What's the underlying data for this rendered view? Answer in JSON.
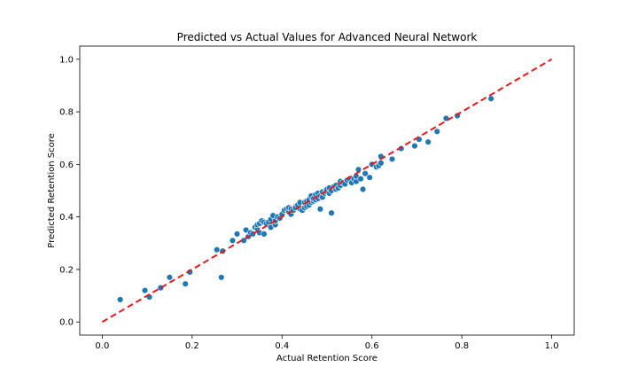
{
  "chart_data": {
    "type": "scatter",
    "title": "Predicted vs Actual Values for Advanced Neural Network",
    "xlabel": "Actual Retention Score",
    "ylabel": "Predicted Retention Score",
    "xlim": [
      -0.05,
      1.05
    ],
    "ylim": [
      -0.05,
      1.05
    ],
    "xticks": [
      "0.0",
      "0.2",
      "0.4",
      "0.6",
      "0.8",
      "1.0"
    ],
    "yticks": [
      "0.0",
      "0.2",
      "0.4",
      "0.6",
      "0.8",
      "1.0"
    ],
    "grid": false,
    "point_color": "#1f77b4",
    "reference_line": {
      "from": [
        0,
        0
      ],
      "to": [
        1,
        1
      ],
      "color": "#e41a1c",
      "style": "dashed"
    },
    "series": [
      {
        "x": [
          0.04,
          0.095,
          0.105,
          0.13,
          0.15,
          0.185,
          0.195,
          0.255,
          0.265,
          0.268,
          0.29,
          0.3,
          0.315,
          0.32,
          0.325,
          0.33,
          0.335,
          0.34,
          0.345,
          0.345,
          0.35,
          0.35,
          0.355,
          0.36,
          0.36,
          0.365,
          0.37,
          0.375,
          0.375,
          0.38,
          0.385,
          0.385,
          0.39,
          0.395,
          0.4,
          0.405,
          0.41,
          0.415,
          0.415,
          0.42,
          0.42,
          0.425,
          0.43,
          0.43,
          0.435,
          0.44,
          0.44,
          0.445,
          0.45,
          0.45,
          0.455,
          0.455,
          0.46,
          0.46,
          0.465,
          0.465,
          0.47,
          0.47,
          0.475,
          0.475,
          0.48,
          0.48,
          0.485,
          0.485,
          0.49,
          0.49,
          0.495,
          0.5,
          0.5,
          0.505,
          0.505,
          0.51,
          0.51,
          0.515,
          0.52,
          0.52,
          0.525,
          0.53,
          0.53,
          0.535,
          0.54,
          0.545,
          0.55,
          0.555,
          0.56,
          0.565,
          0.565,
          0.57,
          0.575,
          0.58,
          0.585,
          0.595,
          0.6,
          0.61,
          0.615,
          0.62,
          0.62,
          0.645,
          0.665,
          0.695,
          0.705,
          0.725,
          0.745,
          0.765,
          0.79,
          0.865
        ],
        "y": [
          0.085,
          0.12,
          0.095,
          0.13,
          0.17,
          0.145,
          0.19,
          0.275,
          0.17,
          0.27,
          0.31,
          0.335,
          0.31,
          0.35,
          0.325,
          0.34,
          0.335,
          0.36,
          0.355,
          0.37,
          0.34,
          0.375,
          0.385,
          0.335,
          0.38,
          0.375,
          0.38,
          0.36,
          0.39,
          0.405,
          0.37,
          0.385,
          0.4,
          0.395,
          0.41,
          0.425,
          0.43,
          0.42,
          0.435,
          0.41,
          0.43,
          0.425,
          0.44,
          0.435,
          0.445,
          0.43,
          0.455,
          0.425,
          0.435,
          0.455,
          0.44,
          0.46,
          0.445,
          0.465,
          0.455,
          0.48,
          0.46,
          0.47,
          0.465,
          0.485,
          0.47,
          0.49,
          0.43,
          0.48,
          0.475,
          0.495,
          0.49,
          0.495,
          0.505,
          0.49,
          0.51,
          0.415,
          0.5,
          0.515,
          0.505,
          0.52,
          0.51,
          0.52,
          0.535,
          0.53,
          0.525,
          0.54,
          0.545,
          0.53,
          0.545,
          0.535,
          0.555,
          0.58,
          0.545,
          0.505,
          0.565,
          0.55,
          0.6,
          0.59,
          0.595,
          0.605,
          0.63,
          0.62,
          0.66,
          0.67,
          0.695,
          0.685,
          0.725,
          0.775,
          0.785,
          0.85
        ]
      }
    ]
  }
}
